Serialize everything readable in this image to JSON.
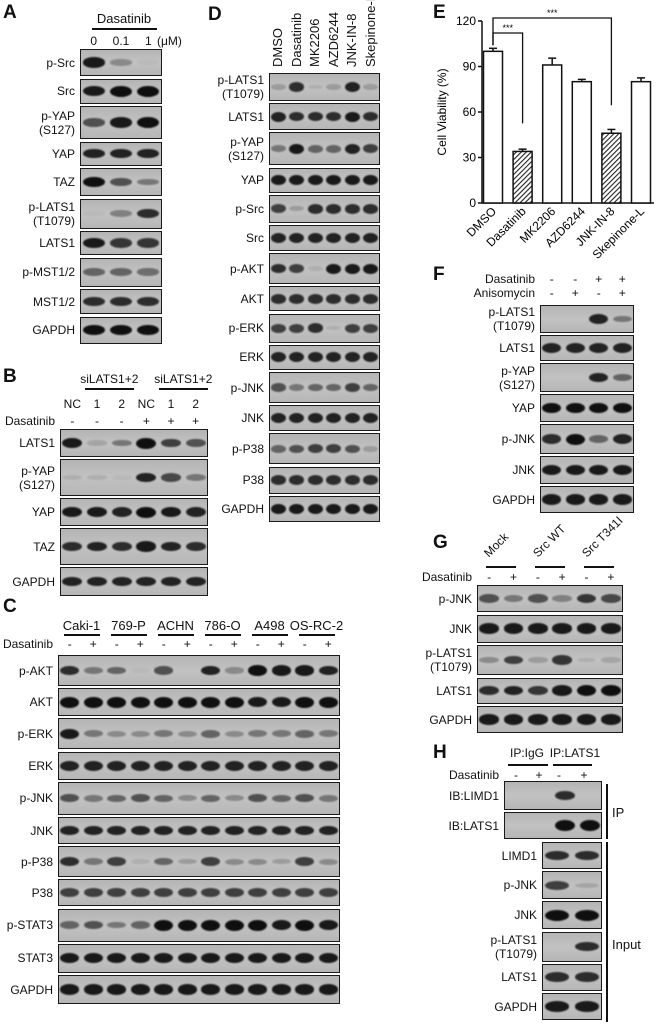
{
  "panels": {
    "A": {
      "letter": "A",
      "drug": "Dasatinib",
      "lanes": [
        "0",
        "0.1",
        "1"
      ],
      "unit": "(μM)",
      "rows": [
        {
          "label": "p-Src",
          "bands": [
            0.9,
            0.3,
            0.04
          ]
        },
        {
          "label": "Src",
          "bands": [
            0.9,
            1,
            1
          ]
        },
        {
          "label": "p-YAP\n(S127)",
          "bands": [
            0.6,
            0.9,
            1
          ]
        },
        {
          "label": "YAP",
          "bands": [
            0.85,
            0.85,
            0.85
          ]
        },
        {
          "label": "TAZ",
          "bands": [
            0.95,
            0.6,
            0.4
          ]
        },
        {
          "label": "p-LATS1\n(T1079)",
          "bands": [
            0.05,
            0.35,
            0.8
          ]
        },
        {
          "label": "LATS1",
          "bands": [
            0.9,
            0.75,
            0.75
          ]
        },
        {
          "label": "p-MST1/2",
          "bands": [
            0.5,
            0.5,
            0.45
          ]
        },
        {
          "label": "MST1/2",
          "bands": [
            0.8,
            0.8,
            0.8
          ]
        },
        {
          "label": "GAPDH",
          "bands": [
            0.95,
            0.95,
            0.95
          ]
        }
      ]
    },
    "B": {
      "letter": "B",
      "groups": [
        "siLATS1+2",
        "siLATS1+2"
      ],
      "lanes": [
        "NC",
        "1",
        "2",
        "NC",
        "1",
        "2"
      ],
      "treatments": [
        {
          "label": "Dasatinib",
          "values": [
            "-",
            "-",
            "-",
            "+",
            "+",
            "+"
          ]
        }
      ],
      "rows": [
        {
          "label": "LATS1",
          "bands": [
            0.9,
            0.15,
            0.4,
            1,
            0.7,
            0.6
          ]
        },
        {
          "label": "p-YAP\n(S127)",
          "bands": [
            0.1,
            0.1,
            0.05,
            0.85,
            0.65,
            0.4
          ]
        },
        {
          "label": "YAP",
          "bands": [
            0.9,
            0.9,
            0.85,
            1,
            0.9,
            0.85
          ]
        },
        {
          "label": "TAZ",
          "bands": [
            0.8,
            0.85,
            0.8,
            0.9,
            0.85,
            0.8
          ]
        },
        {
          "label": "GAPDH",
          "bands": [
            0.85,
            0.85,
            0.85,
            0.85,
            0.85,
            0.85
          ]
        }
      ]
    },
    "C": {
      "letter": "C",
      "groups": [
        "Caki-1",
        "769-P",
        "ACHN",
        "786-O",
        "A498",
        "OS-RC-2"
      ],
      "treatments": [
        {
          "label": "Dasatinib",
          "values": [
            "-",
            "+",
            "-",
            "+",
            "-",
            "+",
            "-",
            "+",
            "-",
            "+",
            "-",
            "+"
          ]
        }
      ],
      "rows": [
        {
          "label": "p-AKT",
          "bands": [
            0.8,
            0.4,
            0.5,
            0.05,
            0.6,
            0.02,
            0.85,
            0.3,
            0.95,
            0.9,
            0.9,
            0.85
          ]
        },
        {
          "label": "AKT",
          "bands": [
            0.95,
            0.95,
            0.95,
            0.95,
            0.95,
            0.95,
            0.95,
            0.95,
            0.9,
            0.9,
            0.95,
            0.95
          ]
        },
        {
          "label": "p-ERK",
          "bands": [
            0.9,
            0.4,
            0.3,
            0.3,
            0.4,
            0.3,
            0.5,
            0.3,
            0.4,
            0.4,
            0.5,
            0.4
          ]
        },
        {
          "label": "ERK",
          "bands": [
            0.85,
            0.85,
            0.85,
            0.85,
            0.85,
            0.85,
            0.85,
            0.85,
            0.85,
            0.85,
            0.85,
            0.85
          ]
        },
        {
          "label": "p-JNK",
          "bands": [
            0.6,
            0.4,
            0.5,
            0.6,
            0.5,
            0.3,
            0.5,
            0.3,
            0.6,
            0.5,
            0.6,
            0.4
          ]
        },
        {
          "label": "JNK",
          "bands": [
            0.85,
            0.85,
            0.85,
            0.85,
            0.85,
            0.85,
            0.85,
            0.85,
            0.85,
            0.85,
            0.85,
            0.85
          ]
        },
        {
          "label": "p-P38",
          "bands": [
            0.8,
            0.4,
            0.7,
            0.1,
            0.5,
            0.2,
            0.7,
            0.3,
            0.3,
            0.2,
            0.7,
            0.3
          ]
        },
        {
          "label": "P38",
          "bands": [
            0.7,
            0.7,
            0.7,
            0.7,
            0.7,
            0.7,
            0.7,
            0.7,
            0.7,
            0.7,
            0.7,
            0.7
          ]
        },
        {
          "label": "p-STAT3",
          "bands": [
            0.5,
            0.6,
            0.4,
            0.5,
            1,
            1,
            1,
            1,
            1,
            0.9,
            1,
            0.9
          ]
        },
        {
          "label": "STAT3",
          "bands": [
            0.9,
            0.9,
            0.9,
            0.9,
            0.9,
            0.9,
            0.9,
            0.9,
            0.9,
            0.9,
            0.9,
            0.9
          ]
        },
        {
          "label": "GAPDH",
          "bands": [
            0.9,
            0.9,
            0.9,
            0.9,
            0.9,
            0.9,
            0.9,
            0.9,
            0.9,
            0.9,
            0.9,
            0.9
          ]
        }
      ]
    },
    "D": {
      "letter": "D",
      "lanes": [
        "DMSO",
        "Dasatinib",
        "MK2206",
        "AZD6244",
        "JNK-IN-8",
        "Skepinone-L"
      ],
      "rows": [
        {
          "label": "p-LATS1\n(T1079)",
          "bands": [
            0.2,
            0.8,
            0.1,
            0.2,
            0.85,
            0.2
          ]
        },
        {
          "label": "LATS1",
          "bands": [
            0.85,
            0.8,
            0.8,
            0.8,
            0.9,
            0.8
          ]
        },
        {
          "label": "p-YAP\n(S127)",
          "bands": [
            0.4,
            0.9,
            0.5,
            0.5,
            0.85,
            0.7
          ]
        },
        {
          "label": "YAP",
          "bands": [
            0.9,
            0.9,
            0.9,
            0.9,
            0.9,
            0.9
          ]
        },
        {
          "label": "p-Src",
          "bands": [
            0.7,
            0.2,
            0.8,
            0.8,
            0.8,
            0.8
          ]
        },
        {
          "label": "Src",
          "bands": [
            0.85,
            0.85,
            0.85,
            0.85,
            0.85,
            0.85
          ]
        },
        {
          "label": "p-AKT",
          "bands": [
            0.8,
            0.7,
            0.1,
            0.9,
            0.9,
            0.9
          ]
        },
        {
          "label": "AKT",
          "bands": [
            0.8,
            0.8,
            0.8,
            0.8,
            0.8,
            0.8
          ]
        },
        {
          "label": "p-ERK",
          "bands": [
            0.7,
            0.7,
            0.8,
            0.1,
            0.7,
            0.7
          ]
        },
        {
          "label": "ERK",
          "bands": [
            0.85,
            0.85,
            0.85,
            0.85,
            0.85,
            0.85
          ]
        },
        {
          "label": "p-JNK",
          "bands": [
            0.6,
            0.4,
            0.5,
            0.5,
            0.7,
            0.5
          ]
        },
        {
          "label": "JNK",
          "bands": [
            0.85,
            0.85,
            0.85,
            0.85,
            0.85,
            0.85
          ]
        },
        {
          "label": "p-P38",
          "bands": [
            0.5,
            0.6,
            0.7,
            0.7,
            0.6,
            0.2
          ]
        },
        {
          "label": "P38",
          "bands": [
            0.8,
            0.8,
            0.8,
            0.8,
            0.8,
            0.8
          ]
        },
        {
          "label": "GAPDH",
          "bands": [
            0.9,
            0.9,
            0.9,
            0.9,
            0.9,
            0.9
          ]
        }
      ]
    },
    "F": {
      "letter": "F",
      "treatments": [
        {
          "label": "Dasatinib",
          "values": [
            "-",
            "-",
            "+",
            "+"
          ]
        },
        {
          "label": "Anisomycin",
          "values": [
            "-",
            "+",
            "-",
            "+"
          ]
        }
      ],
      "rows": [
        {
          "label": "p-LATS1\n(T1079)",
          "bands": [
            0,
            0,
            0.85,
            0.4
          ]
        },
        {
          "label": "LATS1",
          "bands": [
            0.85,
            0.85,
            0.85,
            0.85
          ]
        },
        {
          "label": "p-YAP\n(S127)",
          "bands": [
            0,
            0,
            0.85,
            0.5
          ]
        },
        {
          "label": "YAP",
          "bands": [
            0.95,
            0.95,
            0.95,
            0.95
          ]
        },
        {
          "label": "p-JNK",
          "bands": [
            0.8,
            1,
            0.5,
            0.85
          ]
        },
        {
          "label": "JNK",
          "bands": [
            0.9,
            0.9,
            0.9,
            0.9
          ]
        },
        {
          "label": "GAPDH",
          "bands": [
            0.9,
            0.9,
            0.9,
            0.9
          ]
        }
      ]
    },
    "G": {
      "letter": "G",
      "groups": [
        "Mock",
        "Src WT",
        "Src T341I"
      ],
      "treatments": [
        {
          "label": "Dasatinib",
          "values": [
            "-",
            "+",
            "-",
            "+",
            "-",
            "+"
          ]
        }
      ],
      "rows": [
        {
          "label": "p-JNK",
          "bands": [
            0.6,
            0.4,
            0.6,
            0.35,
            0.75,
            0.65
          ]
        },
        {
          "label": "JNK",
          "bands": [
            0.9,
            0.9,
            0.9,
            0.9,
            0.9,
            0.9
          ]
        },
        {
          "label": "p-LATS1\n(T1079)",
          "bands": [
            0.3,
            0.7,
            0.2,
            0.75,
            0.1,
            0.15
          ]
        },
        {
          "label": "LATS1",
          "bands": [
            0.8,
            0.85,
            0.75,
            0.9,
            1,
            1
          ]
        },
        {
          "label": "GAPDH",
          "bands": [
            0.9,
            0.9,
            0.9,
            0.9,
            0.9,
            0.9
          ]
        }
      ]
    },
    "H": {
      "letter": "H",
      "groups": [
        "IP:IgG",
        "IP:LATS1"
      ],
      "treatments": [
        {
          "label": "Dasatinib",
          "values": [
            "-",
            "+",
            "-",
            "+"
          ]
        }
      ],
      "ip_label": "IP",
      "input_label": "Input",
      "ip_rows": [
        {
          "label": "IB:LIMD1",
          "bands": [
            0,
            0,
            0.8,
            0
          ]
        },
        {
          "label": "IB:LATS1",
          "bands": [
            0,
            0,
            1,
            1
          ]
        }
      ],
      "input_rows": [
        {
          "label": "LIMD1",
          "bands": [
            0.8,
            0.8
          ]
        },
        {
          "label": "p-JNK",
          "bands": [
            0.7,
            0.15
          ]
        },
        {
          "label": "JNK",
          "bands": [
            1,
            1
          ]
        },
        {
          "label": "p-LATS1\n(T1079)",
          "bands": [
            0,
            0.8
          ]
        },
        {
          "label": "LATS1",
          "bands": [
            0.8,
            0.8
          ]
        },
        {
          "label": "GAPDH",
          "bands": [
            0.9,
            0.9
          ]
        }
      ]
    }
  },
  "chart_data": {
    "letter": "E",
    "type": "bar",
    "categories": [
      "DMSO",
      "Dasatinib",
      "MK2206",
      "AZD6244",
      "JNK-IN-8",
      "Skepinone-L"
    ],
    "values": [
      100,
      34,
      91,
      80,
      46,
      80
    ],
    "errors": [
      2,
      1.5,
      4.5,
      1.5,
      2.5,
      2.5
    ],
    "hatched": [
      false,
      true,
      false,
      false,
      true,
      false
    ],
    "ylabel": "Cell Viability (%)",
    "xlabel": "",
    "ylim": [
      0,
      120
    ],
    "yticks": [
      "0",
      "30",
      "60",
      "90",
      "120"
    ],
    "significance": [
      {
        "from": "DMSO",
        "to": "Dasatinib",
        "label": "***"
      },
      {
        "from": "DMSO",
        "to": "JNK-IN-8",
        "label": "***"
      }
    ],
    "grid": false,
    "legend": "none"
  }
}
